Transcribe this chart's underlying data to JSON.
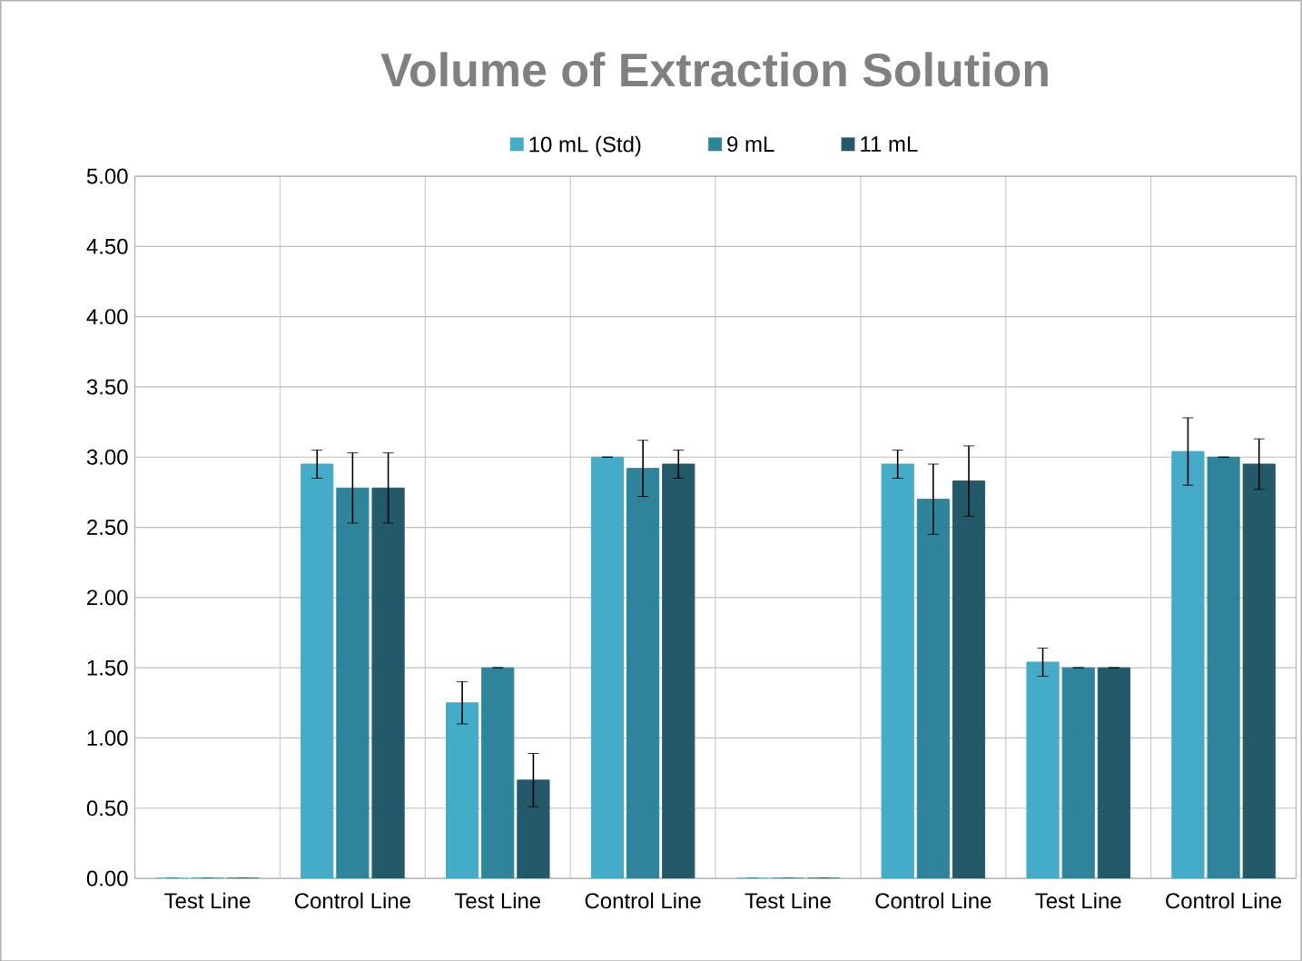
{
  "chart_data": {
    "type": "bar",
    "title": "Volume of Extraction Solution",
    "categories": [
      "Test Line",
      "Control Line",
      "Test Line",
      "Control Line",
      "Test Line",
      "Control Line",
      "Test Line",
      "Control Line"
    ],
    "series": [
      {
        "name": "10 mL (Std)",
        "color": "#44abc8",
        "values": [
          0,
          2.95,
          1.25,
          3.0,
          0,
          2.95,
          1.54,
          3.04
        ],
        "errors": [
          null,
          0.1,
          0.15,
          null,
          null,
          0.1,
          0.1,
          0.24
        ]
      },
      {
        "name": "9 mL",
        "color": "#2e859b",
        "values": [
          0,
          2.78,
          1.5,
          2.92,
          0,
          2.7,
          1.5,
          3.0
        ],
        "errors": [
          null,
          0.25,
          null,
          0.2,
          null,
          0.25,
          null,
          null
        ]
      },
      {
        "name": "11 mL",
        "color": "#225a69",
        "values": [
          0,
          2.78,
          0.7,
          2.95,
          0,
          2.83,
          1.5,
          2.95
        ],
        "errors": [
          null,
          0.25,
          0.19,
          0.1,
          null,
          0.25,
          null,
          0.18
        ]
      }
    ],
    "ylim": [
      0,
      5
    ],
    "yticks": [
      {
        "value": 0,
        "label": "0.00"
      },
      {
        "value": 0.5,
        "label": "0.50"
      },
      {
        "value": 1,
        "label": "1.00"
      },
      {
        "value": 1.5,
        "label": "1.50"
      },
      {
        "value": 2,
        "label": "2.00"
      },
      {
        "value": 2.5,
        "label": "2.50"
      },
      {
        "value": 3,
        "label": "3.00"
      },
      {
        "value": 3.5,
        "label": "3.50"
      },
      {
        "value": 4,
        "label": "4.00"
      },
      {
        "value": 4.5,
        "label": "4.50"
      },
      {
        "value": 5,
        "label": "5.00"
      }
    ],
    "grid": true,
    "legend": "top"
  }
}
